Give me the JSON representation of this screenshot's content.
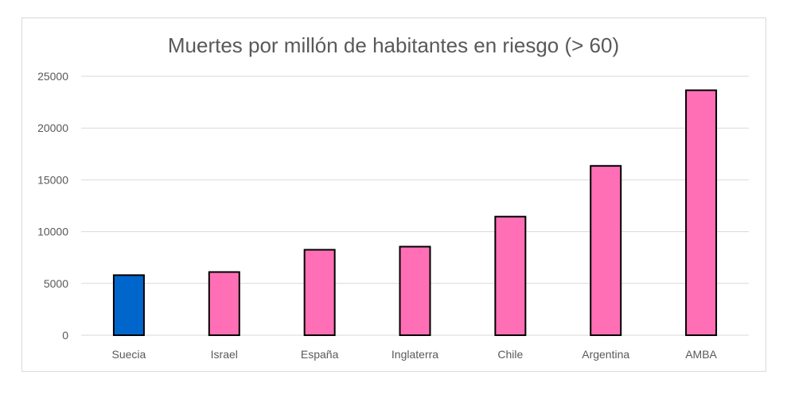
{
  "chart_data": {
    "type": "bar",
    "title": "Muertes por millón de habitantes en riesgo (> 60)",
    "xlabel": "",
    "ylabel": "",
    "categories": [
      "Suecia",
      "Israel",
      "España",
      "Inglaterra",
      "Chile",
      "Argentina",
      "AMBA"
    ],
    "values": [
      5800,
      6100,
      8250,
      8550,
      11450,
      16350,
      23650
    ],
    "bar_colors": [
      "#0066CC",
      "#FF6FB5",
      "#FF6FB5",
      "#FF6FB5",
      "#FF6FB5",
      "#FF6FB5",
      "#FF6FB5"
    ],
    "ylim": [
      0,
      25000
    ],
    "yticks": [
      0,
      5000,
      10000,
      15000,
      20000,
      25000
    ],
    "ytick_labels": [
      "0",
      "5000",
      "10000",
      "15000",
      "20000",
      "25000"
    ],
    "grid": true,
    "legend": "none"
  }
}
